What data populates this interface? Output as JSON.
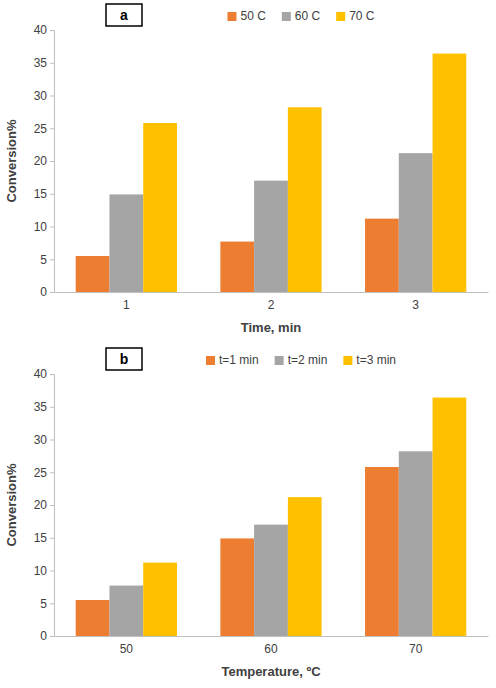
{
  "chart_data": [
    {
      "type": "bar",
      "annotation": "a",
      "x_label": "Time, min",
      "y_label": "Conversion%",
      "categories": [
        "1",
        "2",
        "3"
      ],
      "series": [
        {
          "name": "50 C",
          "color": "#ed7d31",
          "values": [
            5.5,
            7.7,
            11.2
          ]
        },
        {
          "name": "60 C",
          "color": "#a5a5a5",
          "values": [
            14.9,
            17.0,
            21.2
          ]
        },
        {
          "name": "70 C",
          "color": "#ffc000",
          "values": [
            25.8,
            28.2,
            36.4
          ]
        }
      ],
      "ylim": [
        0,
        40
      ],
      "yticks": [
        0,
        5,
        10,
        15,
        20,
        25,
        30,
        35,
        40
      ],
      "grid": false,
      "legend": "top"
    },
    {
      "type": "bar",
      "annotation": "b",
      "x_label": "Temperature, ºC",
      "y_label": "Conversion%",
      "categories": [
        "50",
        "60",
        "70"
      ],
      "series": [
        {
          "name": "t=1 min",
          "color": "#ed7d31",
          "values": [
            5.5,
            14.9,
            25.8
          ]
        },
        {
          "name": "t=2 min",
          "color": "#a5a5a5",
          "values": [
            7.7,
            17.0,
            28.2
          ]
        },
        {
          "name": "t=3 min",
          "color": "#ffc000",
          "values": [
            11.2,
            21.2,
            36.4
          ]
        }
      ],
      "ylim": [
        0,
        40
      ],
      "yticks": [
        0,
        5,
        10,
        15,
        20,
        25,
        30,
        35,
        40
      ],
      "grid": false,
      "legend": "top"
    }
  ]
}
